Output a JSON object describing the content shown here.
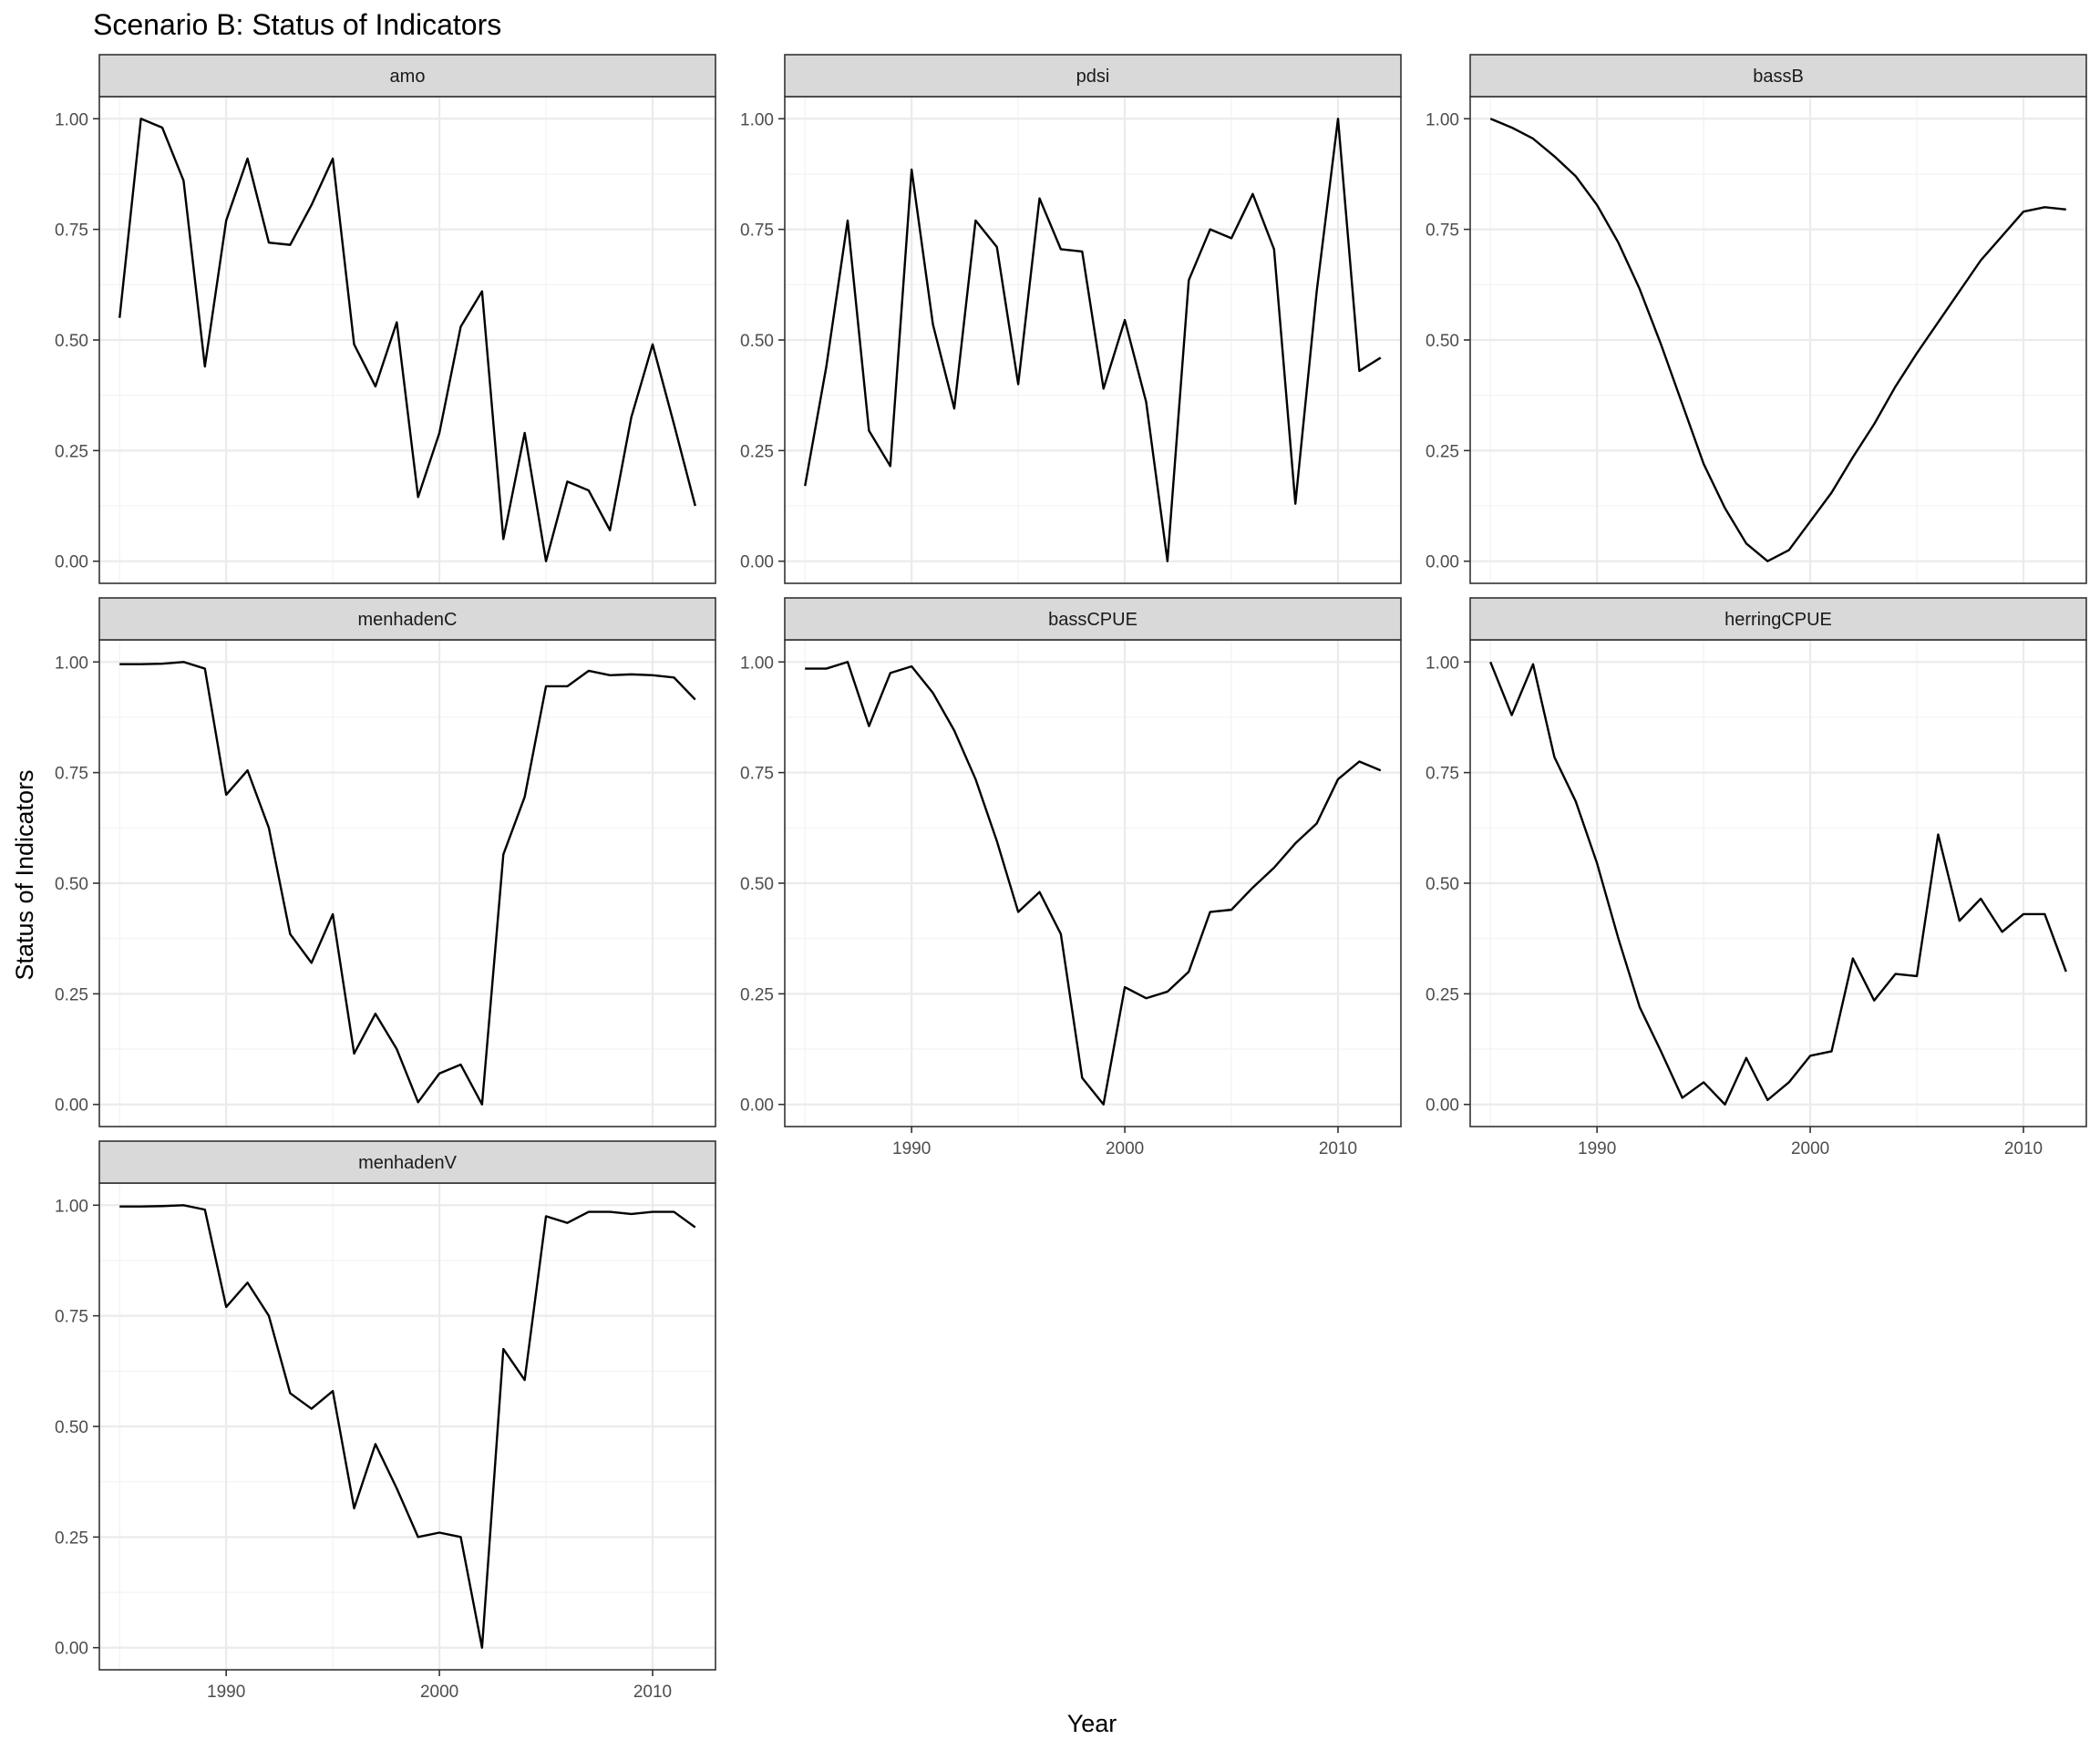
{
  "chart_data": {
    "type": "line",
    "title": "Scenario B: Status of Indicators",
    "xlabel": "Year",
    "ylabel": "Status of Indicators",
    "x_ticks": [
      1990,
      2000,
      2010
    ],
    "y_ticks": [
      "0.00",
      "0.25",
      "0.50",
      "0.75",
      "1.00"
    ],
    "xlim": [
      1985,
      2012
    ],
    "ylim": [
      0,
      1
    ],
    "grid": true,
    "x": [
      1985,
      1986,
      1987,
      1988,
      1989,
      1990,
      1991,
      1992,
      1993,
      1994,
      1995,
      1996,
      1997,
      1998,
      1999,
      2000,
      2001,
      2002,
      2003,
      2004,
      2005,
      2006,
      2007,
      2008,
      2009,
      2010,
      2011,
      2012
    ],
    "panels": [
      {
        "label": "amo",
        "values": [
          0.55,
          1.0,
          0.98,
          0.86,
          0.44,
          0.77,
          0.91,
          0.72,
          0.715,
          0.805,
          0.91,
          0.49,
          0.395,
          0.54,
          0.145,
          0.29,
          0.53,
          0.61,
          0.05,
          0.29,
          0.0,
          0.18,
          0.16,
          0.07,
          0.325,
          0.49,
          0.31,
          0.125
        ]
      },
      {
        "label": "pdsi",
        "values": [
          0.17,
          0.44,
          0.77,
          0.295,
          0.215,
          0.885,
          0.535,
          0.345,
          0.77,
          0.71,
          0.4,
          0.82,
          0.705,
          0.7,
          0.39,
          0.545,
          0.36,
          0.0,
          0.635,
          0.75,
          0.73,
          0.83,
          0.705,
          0.13,
          0.61,
          1.0,
          0.43,
          0.46
        ]
      },
      {
        "label": "bassB",
        "values": [
          1.0,
          0.98,
          0.955,
          0.915,
          0.87,
          0.805,
          0.72,
          0.615,
          0.49,
          0.355,
          0.22,
          0.12,
          0.04,
          0.0,
          0.025,
          0.09,
          0.155,
          0.235,
          0.31,
          0.395,
          0.47,
          0.54,
          0.61,
          0.68,
          0.735,
          0.79,
          0.8,
          0.795
        ]
      },
      {
        "label": "menhadenC",
        "values": [
          0.995,
          0.995,
          0.996,
          1.0,
          0.985,
          0.7,
          0.755,
          0.625,
          0.385,
          0.32,
          0.43,
          0.115,
          0.205,
          0.125,
          0.005,
          0.07,
          0.09,
          0.0,
          0.565,
          0.695,
          0.945,
          0.945,
          0.98,
          0.97,
          0.972,
          0.97,
          0.965,
          0.915
        ]
      },
      {
        "label": "bassCPUE",
        "values": [
          0.985,
          0.985,
          1.0,
          0.855,
          0.975,
          0.99,
          0.93,
          0.845,
          0.735,
          0.595,
          0.435,
          0.48,
          0.385,
          0.06,
          0.0,
          0.265,
          0.24,
          0.255,
          0.3,
          0.435,
          0.44,
          0.49,
          0.535,
          0.59,
          0.635,
          0.735,
          0.775,
          0.755
        ]
      },
      {
        "label": "herringCPUE",
        "values": [
          1.0,
          0.88,
          0.995,
          0.785,
          0.685,
          0.545,
          0.375,
          0.22,
          0.12,
          0.015,
          0.05,
          0.0,
          0.105,
          0.01,
          0.05,
          0.11,
          0.12,
          0.33,
          0.235,
          0.295,
          0.29,
          0.61,
          0.415,
          0.465,
          0.39,
          0.43,
          0.43,
          0.3
        ]
      },
      {
        "label": "menhadenV",
        "values": [
          0.997,
          0.997,
          0.998,
          1.0,
          0.99,
          0.77,
          0.825,
          0.75,
          0.575,
          0.54,
          0.58,
          0.315,
          0.46,
          0.36,
          0.25,
          0.26,
          0.25,
          0.0,
          0.675,
          0.605,
          0.975,
          0.96,
          0.985,
          0.985,
          0.98,
          0.985,
          0.985,
          0.95
        ]
      }
    ]
  }
}
